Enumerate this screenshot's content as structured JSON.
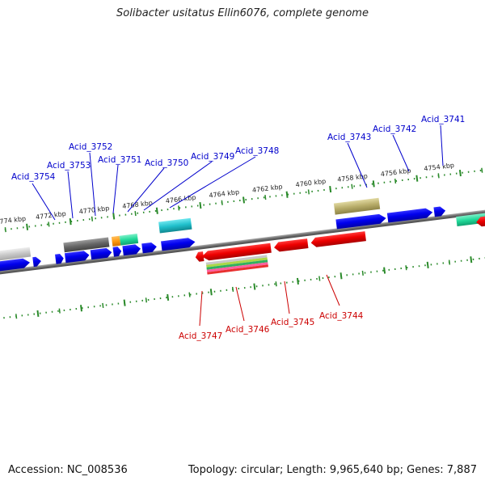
{
  "title": "Solibacter usitatus Ellin6076, complete genome",
  "footer": {
    "accession": "Accession: NC_008536",
    "summary": "Topology: circular; Length: 9,965,640 bp; Genes: 7,887"
  },
  "colors": {
    "forward_label": "#0000cc",
    "reverse_label": "#cc0000",
    "backbone": "#7a7a7a",
    "tick": "#2a8a2a",
    "blue_gene": "#0000ee",
    "red_gene": "#ee0000"
  },
  "ticks": [
    "4774 kbp",
    "4772 kbp",
    "4770 kbp",
    "4768 kbp",
    "4766 kbp",
    "4764 kbp",
    "4762 kbp",
    "4760 kbp",
    "4758 kbp",
    "4756 kbp",
    "4754 kbp"
  ],
  "forward_labels": [
    "Acid_3754",
    "Acid_3753",
    "Acid_3752",
    "Acid_3751",
    "Acid_3750",
    "Acid_3749",
    "Acid_3748",
    "Acid_3743",
    "Acid_3742",
    "Acid_3741"
  ],
  "reverse_labels": [
    "Acid_3747",
    "Acid_3746",
    "Acid_3745",
    "Acid_3744"
  ]
}
